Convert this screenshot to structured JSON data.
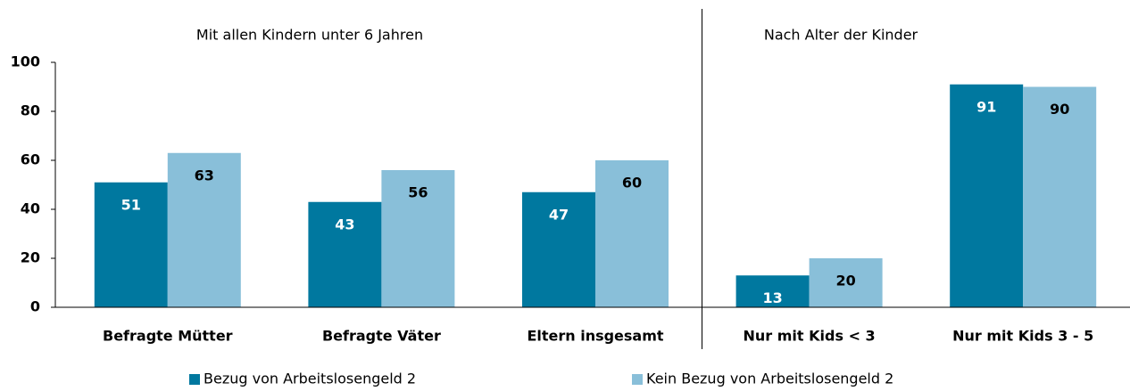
{
  "chart_data": {
    "type": "bar",
    "annotations": [
      "Mit allen Kindern unter 6 Jahren",
      "Nach Alter der Kinder"
    ],
    "categories": [
      "Befragte Mütter",
      "Befragte Väter",
      "Eltern insgesamt",
      "Nur mit Kids < 3",
      "Nur mit Kids 3 - 5"
    ],
    "series": [
      {
        "name": "Bezug von Arbeitslosengeld 2",
        "color": "#00789f",
        "values": [
          51,
          43,
          47,
          13,
          91
        ]
      },
      {
        "name": "Kein Bezug von Arbeitslosengeld 2",
        "color": "#89bfd9",
        "values": [
          63,
          56,
          60,
          20,
          90
        ]
      }
    ],
    "ylim": [
      0,
      100
    ],
    "yticks": [
      0,
      20,
      40,
      60,
      80,
      100
    ],
    "grid": false,
    "legend": "bottom"
  }
}
